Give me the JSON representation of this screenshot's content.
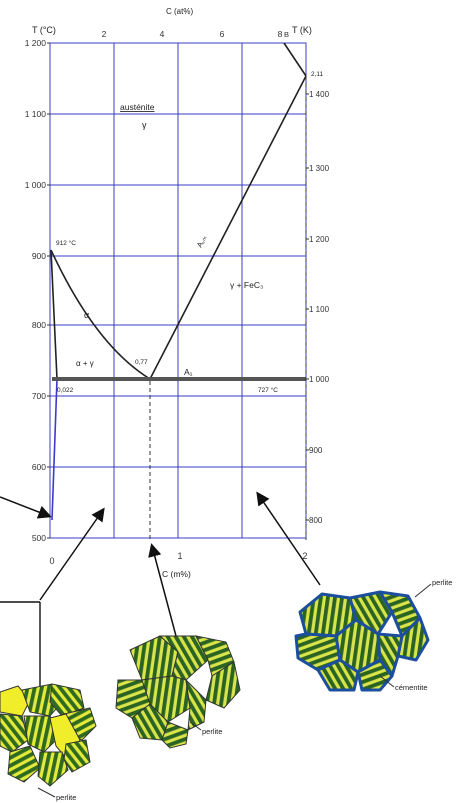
{
  "axes": {
    "left_title": "T (°C)",
    "right_title": "T (K)",
    "top_title": "C (at%)",
    "bottom_title": "C (m%)",
    "left_ticks": [
      {
        "value": 1200,
        "label": "1 200"
      },
      {
        "value": 1100,
        "label": "1 100"
      },
      {
        "value": 1000,
        "label": "1 000"
      },
      {
        "value": 900,
        "label": "900"
      },
      {
        "value": 800,
        "label": "800"
      },
      {
        "value": 700,
        "label": "700"
      },
      {
        "value": 600,
        "label": "600"
      },
      {
        "value": 500,
        "label": "500"
      }
    ],
    "right_ticks": [
      {
        "value": 1400,
        "label": "1 400"
      },
      {
        "value": 1300,
        "label": "1 300"
      },
      {
        "value": 1200,
        "label": "1 200"
      },
      {
        "value": 1100,
        "label": "1 100"
      },
      {
        "value": 1000,
        "label": "1 000"
      },
      {
        "value": 900,
        "label": "900"
      },
      {
        "value": 800,
        "label": "800"
      }
    ],
    "top_ticks": [
      {
        "value": 2,
        "label": "2"
      },
      {
        "value": 4,
        "label": "4"
      },
      {
        "value": 6,
        "label": "6"
      },
      {
        "value": 8,
        "label": "8"
      }
    ],
    "bottom_ticks": [
      {
        "value": 0,
        "label": "0"
      },
      {
        "value": 1,
        "label": "1"
      },
      {
        "value": 2,
        "label": "2"
      }
    ]
  },
  "labels": {
    "austenite_name": "austénite",
    "austenite_symbol": "γ",
    "alpha_gamma": "α + γ",
    "gamma_fec3": "γ + FeC₃",
    "alpha": "α",
    "acm": "A꜀ₘ",
    "a1": "A₁",
    "t912": "912 °C",
    "t727": "727 °C",
    "c077": "0,77",
    "c0022": "0,022",
    "c211": "2,11",
    "top_corner": "B"
  },
  "micro": {
    "perlite_left": "perlite",
    "perlite_center": "perlite",
    "perlite_right": "perlite",
    "cementite": "cémentite"
  },
  "colors": {
    "grid": "#3b3bc8",
    "curve": "#222222",
    "stripe_green": "#2e6b1f",
    "stripe_yellow": "#e4ea3a",
    "ferrite_yellow": "#f0ee2a",
    "cementite_blue": "#1f6fd0"
  }
}
